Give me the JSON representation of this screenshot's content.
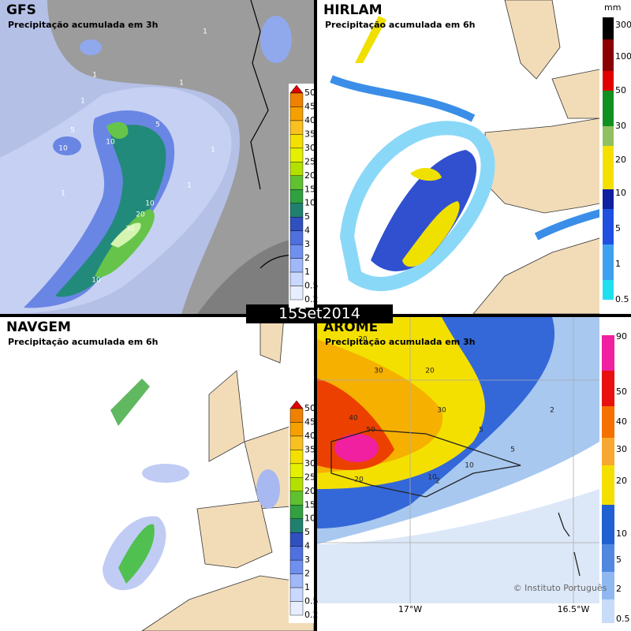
{
  "date_label": "15Set2014",
  "panels": [
    {
      "title": "GFS",
      "subtitle": "Precipitação acumulada em 3h",
      "colorbar": {
        "labels": [
          "50",
          "45",
          "40",
          "35",
          "30",
          "25",
          "20",
          "15",
          "10",
          "5",
          "4",
          "3",
          "2",
          "1",
          "0.5",
          "0.2"
        ]
      },
      "contour_labels": [
        "1",
        "1",
        "1",
        "1",
        "1",
        "1",
        "5",
        "10",
        "10",
        "5",
        "10",
        "20",
        "30",
        "10",
        "1"
      ]
    },
    {
      "title": "HIRLAM",
      "subtitle": "Precipitação acumulada em 6h",
      "colorbar": {
        "unit": "mm",
        "labels": [
          "300",
          "100",
          "50",
          "30",
          "20",
          "10",
          "5",
          "1",
          "0.5"
        ]
      }
    },
    {
      "title": "NAVGEM",
      "subtitle": "Precipitação acumulada em 6h",
      "colorbar": {
        "labels": [
          "50",
          "45",
          "40",
          "35",
          "30",
          "25",
          "20",
          "15",
          "10",
          "5",
          "4",
          "3",
          "2",
          "1",
          "0.5",
          "0.2"
        ]
      }
    },
    {
      "title": "AROME",
      "subtitle": "Precipitação acumulada em 3h",
      "colorbar": {
        "labels": [
          "90",
          "50",
          "40",
          "30",
          "20",
          "10",
          "5",
          "2",
          "0.5"
        ]
      },
      "contour_labels": [
        "20",
        "30",
        "20",
        "30",
        "40",
        "50",
        "20",
        "10",
        "5",
        "2",
        "5",
        "10",
        "2"
      ],
      "axis_labels": [
        "17°W",
        "16.5°W"
      ],
      "credit": "© Instituto Português"
    }
  ]
}
